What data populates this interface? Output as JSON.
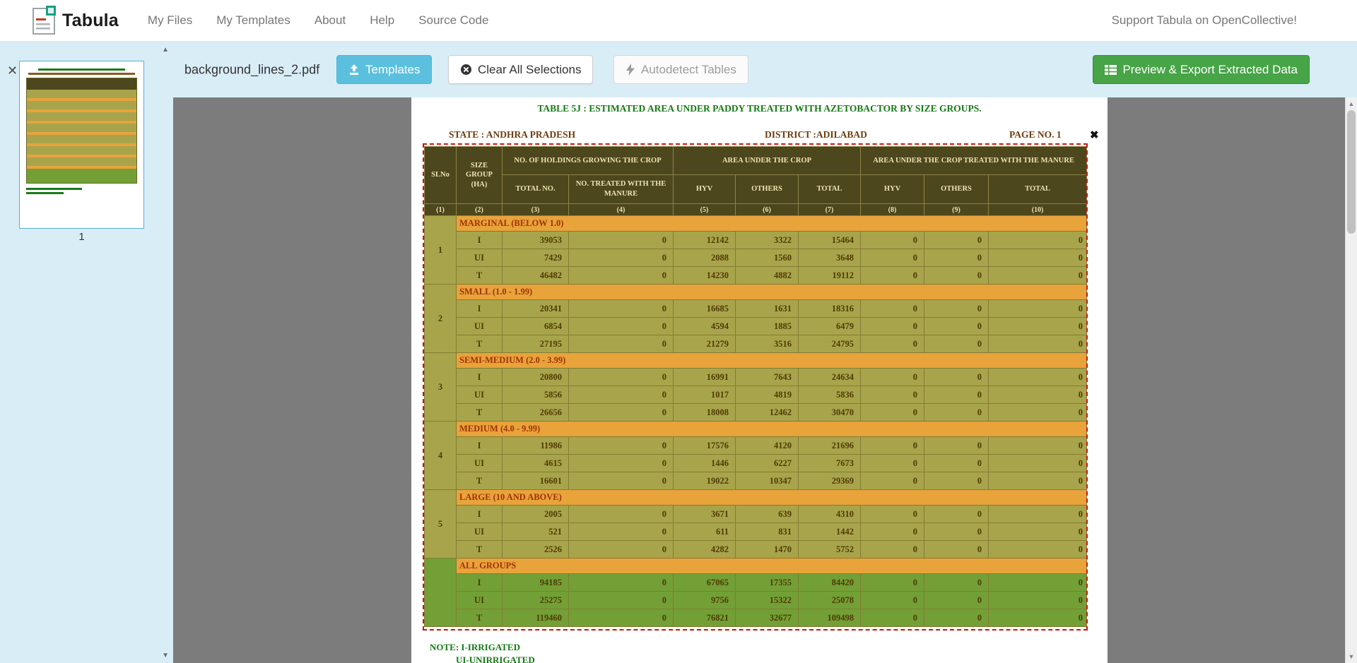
{
  "navbar": {
    "brand": "Tabula",
    "links": [
      "My Files",
      "My Templates",
      "About",
      "Help",
      "Source Code"
    ],
    "support": "Support Tabula on OpenCollective!"
  },
  "toolbar": {
    "filename": "background_lines_2.pdf",
    "templates_label": "Templates",
    "clear_label": "Clear All Selections",
    "autodetect_label": "Autodetect Tables",
    "export_label": "Preview & Export Extracted Data"
  },
  "sidebar": {
    "page_number": "1",
    "close_icon": "✕",
    "up_arrow": "▲",
    "down_arrow": "▼"
  },
  "page": {
    "title": "TABLE 5J : ESTIMATED AREA UNDER PADDY  TREATED WITH AZETOBACTOR BY SIZE GROUPS.",
    "state": "STATE : ANDHRA PRADESH",
    "district": "DISTRICT :ADILABAD",
    "page_no": "PAGE NO. 1",
    "note1": "NOTE: I-IRRIGATED",
    "note2": "UI-UNIRRIGATED",
    "selection_close": "✖"
  },
  "colors": {
    "toolbar_bg": "#d9edf7",
    "info_button": "#5bc0de",
    "success_button": "#47a447",
    "selection_border": "#cc1414",
    "table_header_bg": "#4d471d",
    "table_row_bg": "#a8a44b",
    "section_band_bg": "#e8a33b",
    "all_groups_bg": "#72a036",
    "title_green": "#157a15"
  },
  "table": {
    "header": {
      "slno": "SLNo",
      "size_group": "SIZE GROUP (HA)",
      "holdings": "NO. OF HOLDINGS GROWING THE CROP",
      "area": "AREA UNDER THE CROP",
      "treated": "AREA UNDER THE CROP TREATED WITH THE MANURE",
      "sub": [
        "TOTAL NO.",
        "NO. TREATED WITH THE MANURE",
        "HYV",
        "OTHERS",
        "TOTAL",
        "HYV",
        "OTHERS",
        "TOTAL"
      ],
      "col_numbers": [
        "(1)",
        "(2)",
        "(3)",
        "(4)",
        "(5)",
        "(6)",
        "(7)",
        "(8)",
        "(9)",
        "(10)"
      ]
    },
    "groups": [
      {
        "slno": "1",
        "label": "MARGINAL (BELOW 1.0)",
        "green": false,
        "rows": [
          {
            "t": "I",
            "v": [
              "39053",
              "0",
              "12142",
              "3322",
              "15464",
              "0",
              "0",
              "0"
            ]
          },
          {
            "t": "UI",
            "v": [
              "7429",
              "0",
              "2088",
              "1560",
              "3648",
              "0",
              "0",
              "0"
            ]
          },
          {
            "t": "T",
            "v": [
              "46482",
              "0",
              "14230",
              "4882",
              "19112",
              "0",
              "0",
              "0"
            ]
          }
        ]
      },
      {
        "slno": "2",
        "label": "SMALL (1.0 - 1.99)",
        "green": false,
        "rows": [
          {
            "t": "I",
            "v": [
              "20341",
              "0",
              "16685",
              "1631",
              "18316",
              "0",
              "0",
              "0"
            ]
          },
          {
            "t": "UI",
            "v": [
              "6854",
              "0",
              "4594",
              "1885",
              "6479",
              "0",
              "0",
              "0"
            ]
          },
          {
            "t": "T",
            "v": [
              "27195",
              "0",
              "21279",
              "3516",
              "24795",
              "0",
              "0",
              "0"
            ]
          }
        ]
      },
      {
        "slno": "3",
        "label": "SEMI-MEDIUM (2.0 - 3.99)",
        "green": false,
        "rows": [
          {
            "t": "I",
            "v": [
              "20800",
              "0",
              "16991",
              "7643",
              "24634",
              "0",
              "0",
              "0"
            ]
          },
          {
            "t": "UI",
            "v": [
              "5856",
              "0",
              "1017",
              "4819",
              "5836",
              "0",
              "0",
              "0"
            ]
          },
          {
            "t": "T",
            "v": [
              "26656",
              "0",
              "18008",
              "12462",
              "30470",
              "0",
              "0",
              "0"
            ]
          }
        ]
      },
      {
        "slno": "4",
        "label": "MEDIUM (4.0 - 9.99)",
        "green": false,
        "rows": [
          {
            "t": "I",
            "v": [
              "11986",
              "0",
              "17576",
              "4120",
              "21696",
              "0",
              "0",
              "0"
            ]
          },
          {
            "t": "UI",
            "v": [
              "4615",
              "0",
              "1446",
              "6227",
              "7673",
              "0",
              "0",
              "0"
            ]
          },
          {
            "t": "T",
            "v": [
              "16601",
              "0",
              "19022",
              "10347",
              "29369",
              "0",
              "0",
              "0"
            ]
          }
        ]
      },
      {
        "slno": "5",
        "label": "LARGE (10 AND ABOVE)",
        "green": false,
        "rows": [
          {
            "t": "I",
            "v": [
              "2005",
              "0",
              "3671",
              "639",
              "4310",
              "0",
              "0",
              "0"
            ]
          },
          {
            "t": "UI",
            "v": [
              "521",
              "0",
              "611",
              "831",
              "1442",
              "0",
              "0",
              "0"
            ]
          },
          {
            "t": "T",
            "v": [
              "2526",
              "0",
              "4282",
              "1470",
              "5752",
              "0",
              "0",
              "0"
            ]
          }
        ]
      },
      {
        "slno": "",
        "label": "ALL GROUPS",
        "green": true,
        "rows": [
          {
            "t": "I",
            "v": [
              "94185",
              "0",
              "67065",
              "17355",
              "84420",
              "0",
              "0",
              "0"
            ]
          },
          {
            "t": "UI",
            "v": [
              "25275",
              "0",
              "9756",
              "15322",
              "25078",
              "0",
              "0",
              "0"
            ]
          },
          {
            "t": "T",
            "v": [
              "119460",
              "0",
              "76821",
              "32677",
              "109498",
              "0",
              "0",
              "0"
            ]
          }
        ]
      }
    ]
  }
}
